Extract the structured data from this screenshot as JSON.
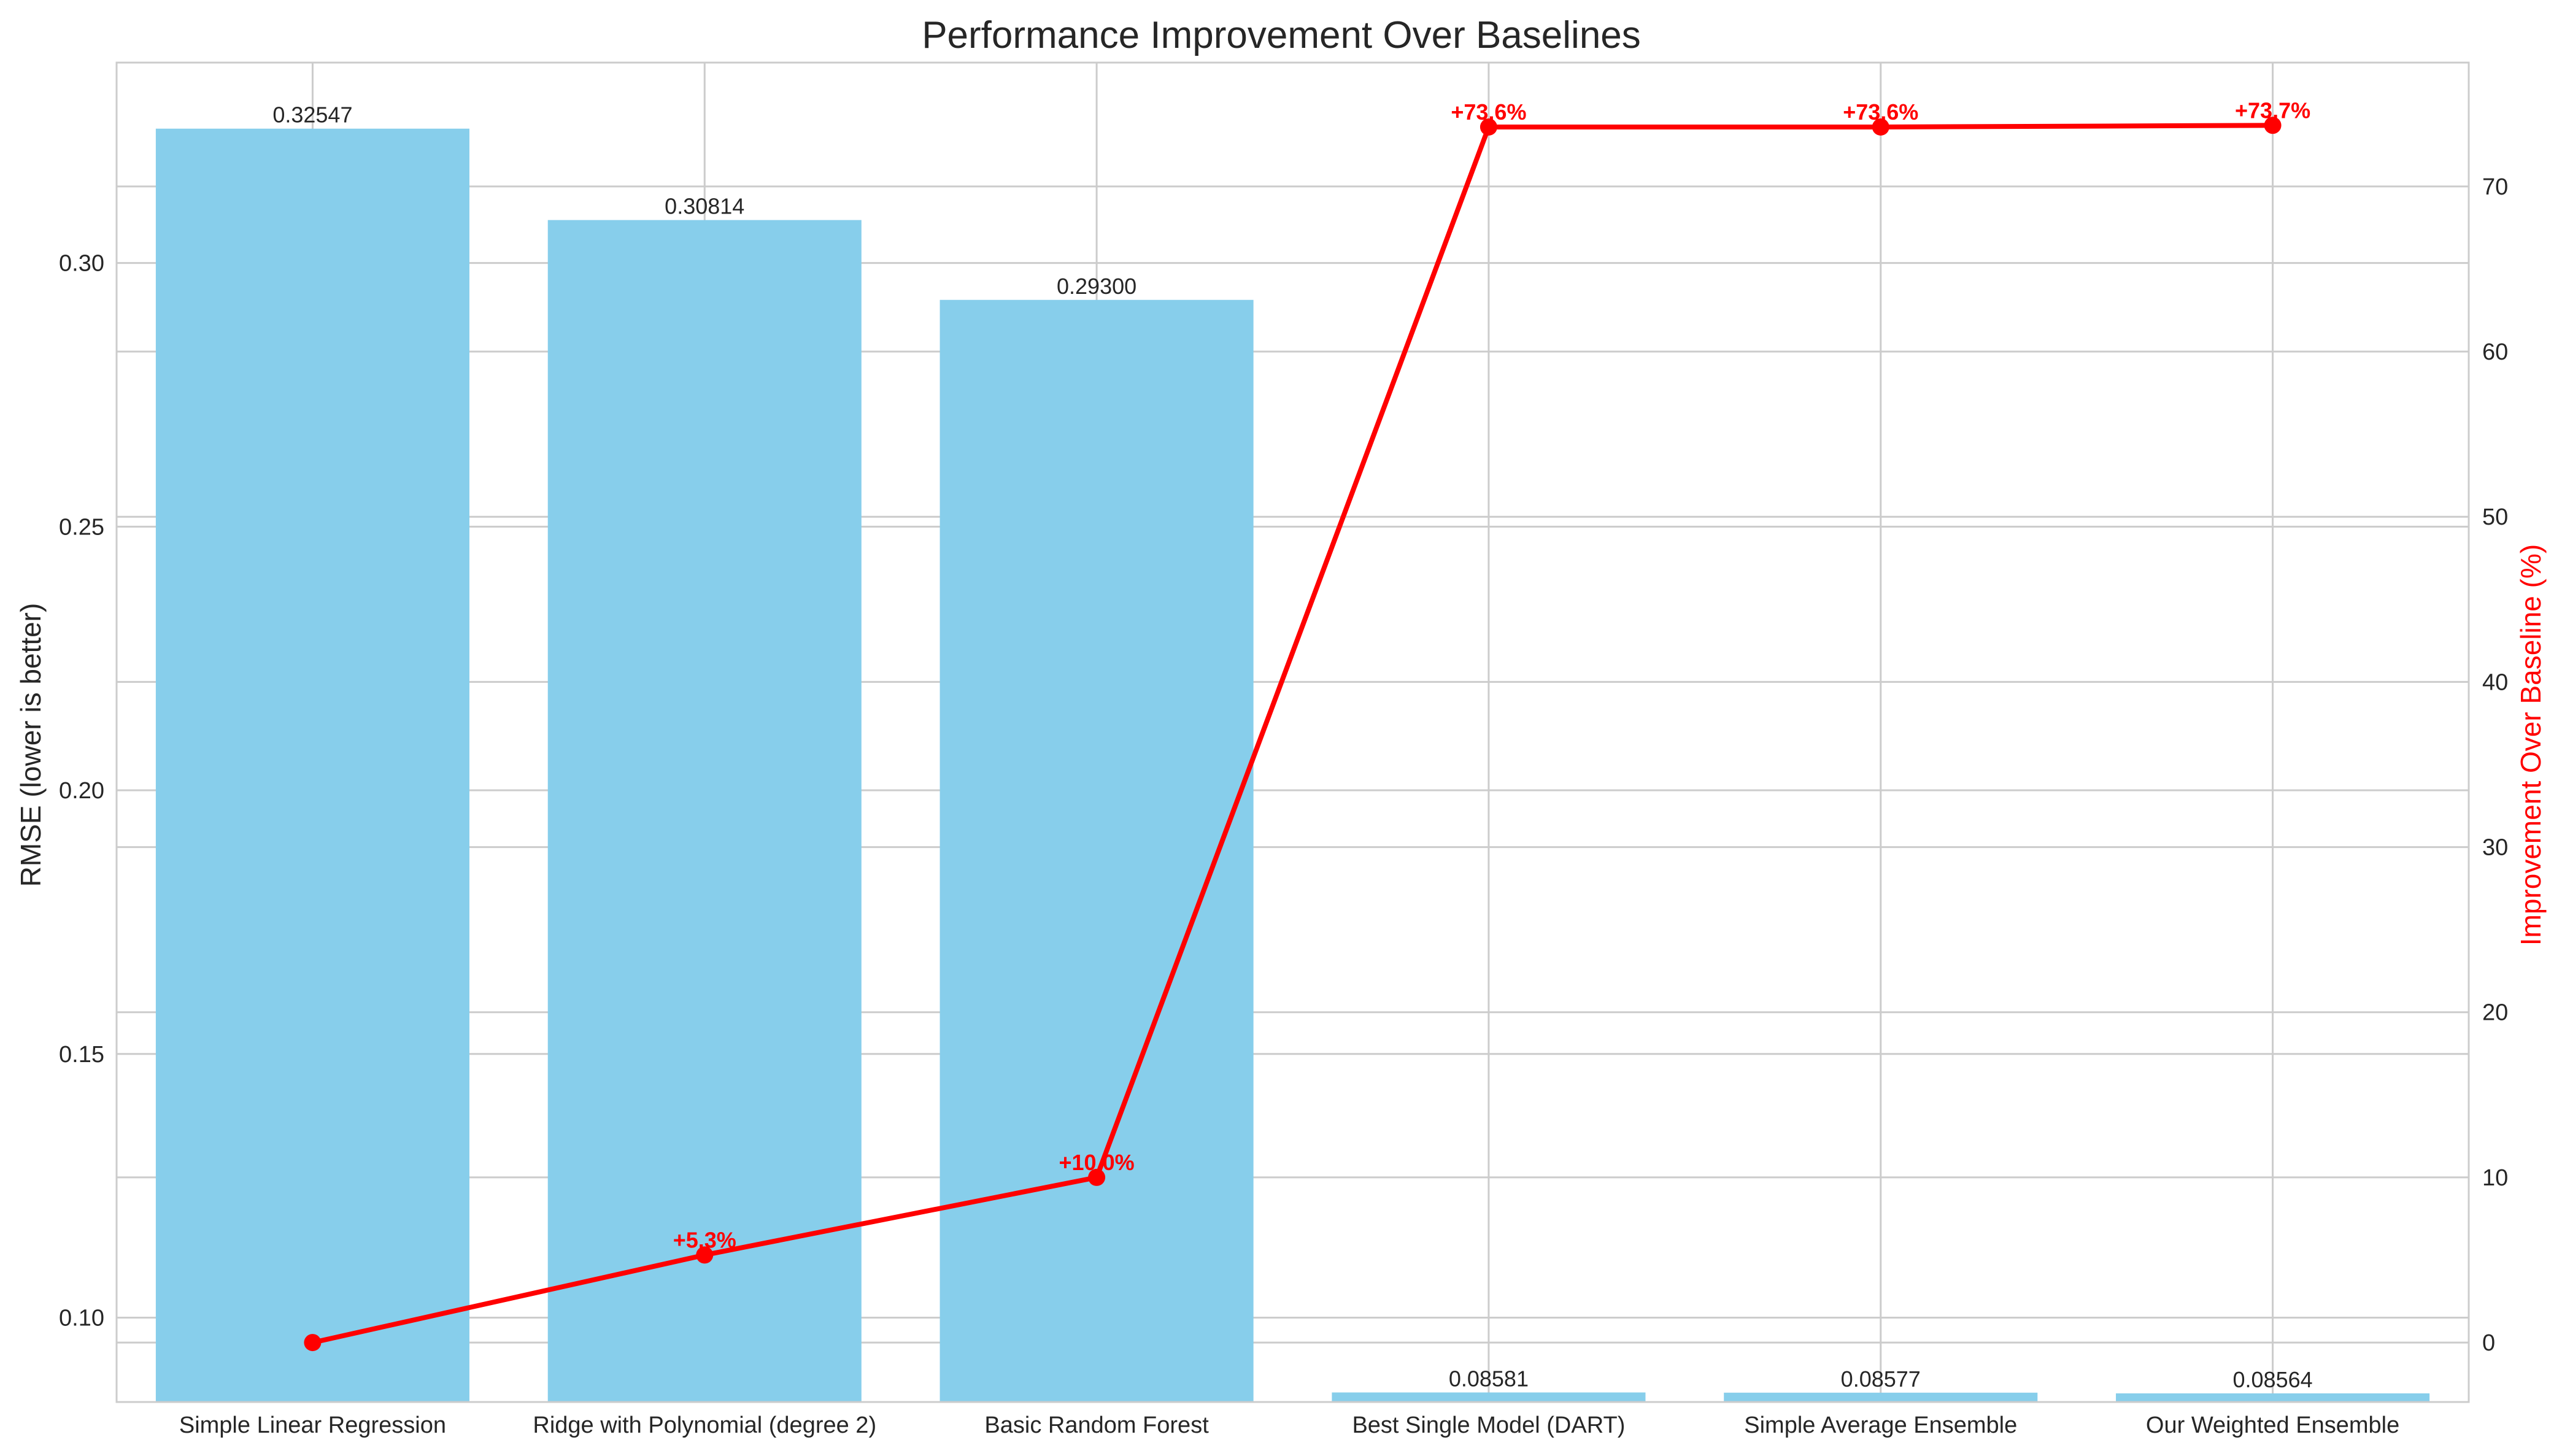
{
  "chart_data": {
    "type": "bar",
    "title": "Performance Improvement Over Baselines",
    "xlabel": "",
    "ylabel": "RMSE (lower is better)",
    "y2label": "Improvement Over Baseline (%)",
    "categories": [
      "Simple Linear Regression",
      "Ridge with Polynomial (degree 2)",
      "Basic Random Forest",
      "Best Single Model (DART)",
      "Simple Average Ensemble",
      "Our Weighted Ensemble"
    ],
    "series": [
      {
        "type": "bar",
        "axis": "left",
        "values": [
          0.32547,
          0.30814,
          0.293,
          0.08581,
          0.08577,
          0.08564
        ],
        "value_labels": [
          "0.32547",
          "0.30814",
          "0.29300",
          "0.08581",
          "0.08577",
          "0.08564"
        ],
        "color": "#87ceeb"
      },
      {
        "type": "line",
        "axis": "right",
        "values": [
          0.0,
          5.3,
          10.0,
          73.6,
          73.6,
          73.7
        ],
        "value_labels": [
          "",
          "+5.3%",
          "+10.0%",
          "+73.6%",
          "+73.6%",
          "+73.7%"
        ],
        "color": "#ff0000"
      }
    ],
    "ylim": [
      0.084,
      0.338
    ],
    "y2lim": [
      -3.6,
      77.5
    ],
    "yticks": [
      0.1,
      0.15,
      0.2,
      0.25,
      0.3
    ],
    "ytick_labels": [
      "0.10",
      "0.15",
      "0.20",
      "0.25",
      "0.30"
    ],
    "y2ticks": [
      0,
      10,
      20,
      30,
      40,
      50,
      60,
      70
    ],
    "y2tick_labels": [
      "0",
      "10",
      "20",
      "30",
      "40",
      "50",
      "60",
      "70"
    ],
    "grid": true,
    "colors": {
      "bar": "#87ceeb",
      "line": "#ff0000",
      "grid": "#cccccc",
      "spine": "#cccccc",
      "text": "#262626"
    }
  }
}
